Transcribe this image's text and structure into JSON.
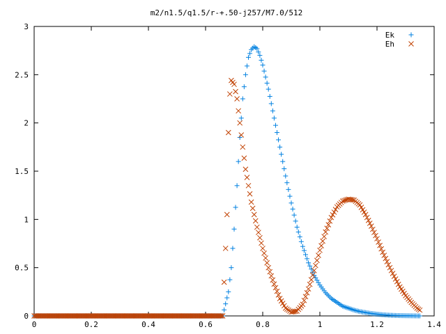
{
  "chart_data": {
    "type": "scatter",
    "title": "m2/n1.5/q1.5/r-+.50-j257/M7.0/512",
    "xlabel": "",
    "ylabel": "",
    "xlim": [
      0,
      1.4
    ],
    "ylim": [
      0,
      3
    ],
    "xticks": [
      "0",
      "0.2",
      "0.4",
      "0.6",
      "0.8",
      "1",
      "1.2",
      "1.4"
    ],
    "yticks": [
      "0",
      "0.5",
      "1",
      "1.5",
      "2",
      "2.5",
      "3"
    ],
    "grid": false,
    "legend_position": "top-right",
    "series": [
      {
        "name": "Ek",
        "marker": "plus",
        "color": "#0080e0",
        "x": [
          0.0,
          0.1,
          0.2,
          0.3,
          0.4,
          0.5,
          0.6,
          0.66,
          0.68,
          0.69,
          0.7,
          0.71,
          0.72,
          0.73,
          0.74,
          0.75,
          0.76,
          0.77,
          0.78,
          0.79,
          0.8,
          0.82,
          0.84,
          0.86,
          0.88,
          0.9,
          0.92,
          0.94,
          0.96,
          0.98,
          1.0,
          1.02,
          1.04,
          1.06,
          1.08,
          1.1,
          1.12,
          1.14,
          1.16,
          1.18,
          1.2,
          1.22,
          1.24,
          1.26,
          1.28,
          1.3,
          1.32,
          1.34,
          1.35
        ],
        "y": [
          0,
          0,
          0,
          0,
          0,
          0,
          0,
          0,
          0.25,
          0.5,
          0.9,
          1.35,
          1.85,
          2.25,
          2.5,
          2.68,
          2.76,
          2.79,
          2.77,
          2.7,
          2.6,
          2.35,
          2.05,
          1.75,
          1.45,
          1.17,
          0.92,
          0.72,
          0.55,
          0.42,
          0.32,
          0.24,
          0.18,
          0.14,
          0.1,
          0.08,
          0.06,
          0.045,
          0.035,
          0.025,
          0.018,
          0.012,
          0.008,
          0.005,
          0.003,
          0.002,
          0.001,
          0.0,
          0.0
        ]
      },
      {
        "name": "Eh",
        "marker": "cross",
        "color": "#c04000",
        "x": [
          0.0,
          0.1,
          0.2,
          0.3,
          0.4,
          0.5,
          0.6,
          0.66,
          0.675,
          0.68,
          0.685,
          0.69,
          0.7,
          0.71,
          0.72,
          0.73,
          0.74,
          0.76,
          0.78,
          0.8,
          0.82,
          0.84,
          0.86,
          0.88,
          0.9,
          0.92,
          0.94,
          0.96,
          0.98,
          1.0,
          1.02,
          1.04,
          1.06,
          1.08,
          1.1,
          1.12,
          1.14,
          1.16,
          1.18,
          1.2,
          1.22,
          1.24,
          1.26,
          1.28,
          1.3,
          1.32,
          1.34,
          1.35
        ],
        "y": [
          0,
          0,
          0,
          0,
          0,
          0,
          0,
          0,
          1.05,
          1.9,
          2.3,
          2.44,
          2.4,
          2.25,
          2.0,
          1.75,
          1.52,
          1.18,
          0.92,
          0.7,
          0.5,
          0.33,
          0.18,
          0.08,
          0.04,
          0.05,
          0.12,
          0.28,
          0.47,
          0.68,
          0.87,
          1.02,
          1.13,
          1.19,
          1.21,
          1.2,
          1.15,
          1.05,
          0.93,
          0.8,
          0.66,
          0.53,
          0.41,
          0.3,
          0.21,
          0.14,
          0.08,
          0.06
        ]
      }
    ]
  }
}
